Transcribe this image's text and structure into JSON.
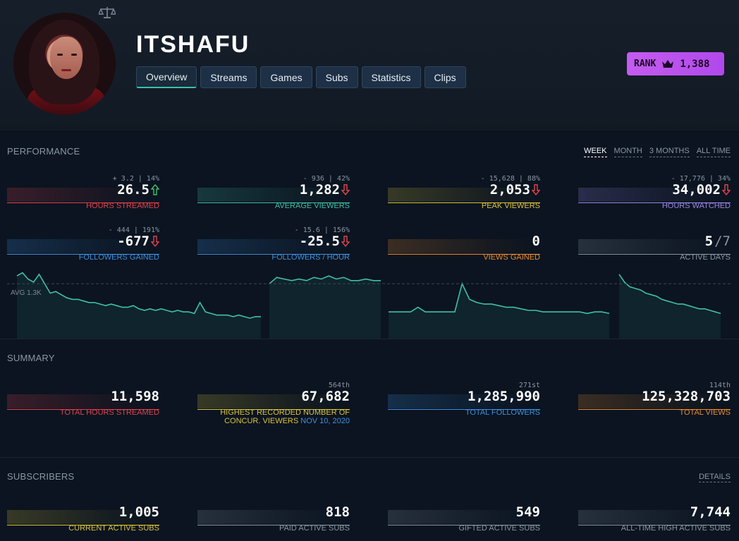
{
  "channel": {
    "name": "ITSHAFU"
  },
  "tabs": [
    {
      "label": "Overview",
      "active": true
    },
    {
      "label": "Streams"
    },
    {
      "label": "Games"
    },
    {
      "label": "Subs"
    },
    {
      "label": "Statistics"
    },
    {
      "label": "Clips"
    }
  ],
  "rank": {
    "label": "RANK",
    "value": "1,388",
    "color": "#c45cf0",
    "icon": "crown-icon"
  },
  "performance": {
    "title": "PERFORMANCE",
    "periods": [
      "WEEK",
      "MONTH",
      "3 MONTHS",
      "ALL TIME"
    ],
    "active_period": "WEEK",
    "stats": [
      {
        "change": "+ 3.2 | 14%",
        "value": "26.5",
        "trend": "up",
        "label": "HOURS STREAMED",
        "color": "#e0424c"
      },
      {
        "change": "- 936 | 42%",
        "value": "1,282",
        "trend": "down",
        "label": "AVERAGE VIEWERS",
        "color": "#3fbfa6"
      },
      {
        "change": "- 15,628 | 88%",
        "value": "2,053",
        "trend": "down",
        "label": "PEAK VIEWERS",
        "color": "#d9c23a"
      },
      {
        "change": "- 17,776 | 34%",
        "value": "34,002",
        "trend": "down",
        "label": "HOURS WATCHED",
        "color": "#9b86e6"
      },
      {
        "change": "- 444 | 191%",
        "value": "-677",
        "trend": "down",
        "label": "FOLLOWERS GAINED",
        "color": "#3d8fe0"
      },
      {
        "change": "- 15.6 | 156%",
        "value": "-25.5",
        "trend": "down",
        "label": "FOLLOWERS / HOUR",
        "color": "#3d8fe0"
      },
      {
        "change": "",
        "value": "0",
        "trend": "",
        "label": "VIEWS GAINED",
        "color": "#e8892c"
      },
      {
        "change": "",
        "value": "5",
        "denom": "/7",
        "trend": "",
        "label": "ACTIVE DAYS",
        "color": "#8b96a3"
      }
    ],
    "avg_label": "AVG 1.3K"
  },
  "summary": {
    "title": "SUMMARY",
    "stats": [
      {
        "rank": "",
        "value": "11,598",
        "label": "TOTAL HOURS STREAMED",
        "color": "#e0424c"
      },
      {
        "rank": "564th",
        "value": "67,682",
        "label": "HIGHEST RECORDED NUMBER OF",
        "label2a": "CONCUR. VIEWERS",
        "label2b": "NOV 10, 2020",
        "color": "#d9c23a"
      },
      {
        "rank": "271st",
        "value": "1,285,990",
        "label": "TOTAL FOLLOWERS",
        "color": "#3d8fe0"
      },
      {
        "rank": "114th",
        "value": "125,328,703",
        "label": "TOTAL VIEWS",
        "color": "#e8892c"
      }
    ]
  },
  "subscribers": {
    "title": "SUBSCRIBERS",
    "details_label": "DETAILS",
    "stats": [
      {
        "value": "1,005",
        "label": "CURRENT ACTIVE SUBS",
        "color": "#d9c23a"
      },
      {
        "value": "818",
        "label": "PAID ACTIVE SUBS",
        "color": "#8b96a3"
      },
      {
        "value": "549",
        "label": "GIFTED ACTIVE SUBS",
        "color": "#8b96a3"
      },
      {
        "value": "7,744",
        "label": "ALL-TIME HIGH ACTIVE SUBS",
        "color": "#8b96a3"
      }
    ]
  },
  "chart_data": {
    "type": "area",
    "title": "",
    "annotations": [
      "AVG 1.3K"
    ],
    "segments": [
      {
        "values": [
          1.35,
          1.37,
          1.33,
          1.31,
          1.36,
          1.3,
          1.24,
          1.25,
          1.23,
          1.21,
          1.2,
          1.2,
          1.19,
          1.18,
          1.18,
          1.17,
          1.16,
          1.17,
          1.16,
          1.15,
          1.15,
          1.16,
          1.14,
          1.13,
          1.14,
          1.13,
          1.14,
          1.13,
          1.12,
          1.13,
          1.12,
          1.12,
          1.11,
          1.18,
          1.12,
          1.11,
          1.1,
          1.1,
          1.1,
          1.09,
          1.1,
          1.09,
          1.08,
          1.09,
          1.09
        ]
      },
      {
        "values": [
          1.3,
          1.34,
          1.33,
          1.32,
          1.33,
          1.32,
          1.34,
          1.33,
          1.35,
          1.33,
          1.34,
          1.32,
          1.32,
          1.33,
          1.32,
          1.32
        ]
      },
      {
        "values": [
          1.12,
          1.12,
          1.12,
          1.12,
          1.15,
          1.12,
          1.12,
          1.12,
          1.12,
          1.12,
          1.3,
          1.2,
          1.18,
          1.17,
          1.17,
          1.16,
          1.15,
          1.15,
          1.14,
          1.13,
          1.13,
          1.12,
          1.12,
          1.12,
          1.12,
          1.12,
          1.12,
          1.11,
          1.12,
          1.12,
          1.11
        ]
      },
      {
        "values": [
          1.36,
          1.31,
          1.28,
          1.27,
          1.26,
          1.24,
          1.23,
          1.22,
          1.2,
          1.19,
          1.18,
          1.17,
          1.17,
          1.16,
          1.15,
          1.14,
          1.14,
          1.13,
          1.12,
          1.11
        ]
      }
    ],
    "avg": 1.3,
    "ylim": [
      0.95,
      1.4
    ],
    "color": "#3fbfa6"
  }
}
